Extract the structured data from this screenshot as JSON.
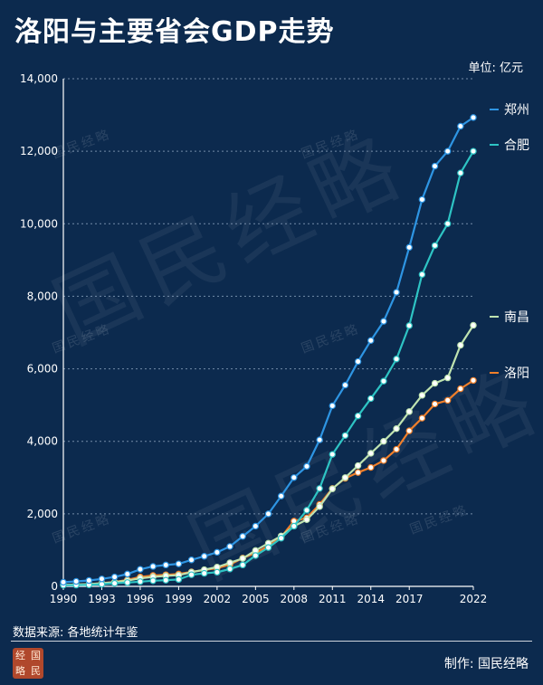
{
  "header": {
    "title": "洛阳与主要省会GDP走势",
    "unit": "单位: 亿元"
  },
  "footer": {
    "source": "数据来源: 各地统计年鉴",
    "credit": "制作: 国民经略",
    "logo_chars": [
      "经",
      "国",
      "略",
      "民"
    ]
  },
  "watermark": {
    "small_text": "国民经略",
    "large_text": "国民经略"
  },
  "colors": {
    "background": "#0c2a4e",
    "zhengzhou": "#2e95e3",
    "hefei": "#2ec4c4",
    "nanchang": "#bfe3b0",
    "luoyang": "#f07f2a",
    "marker_fill": "#ffffff",
    "grid": "#8ea5bf"
  },
  "chart_data": {
    "type": "line",
    "title": "洛阳与主要省会GDP走势",
    "xlabel": "",
    "ylabel": "",
    "ylim": [
      0,
      14000
    ],
    "yticks": [
      0,
      2000,
      4000,
      6000,
      8000,
      10000,
      12000,
      14000
    ],
    "ytick_labels": [
      "0",
      "2,000",
      "4,000",
      "6,000",
      "8,000",
      "10,000",
      "12,000",
      "14,000"
    ],
    "xlim": [
      1990,
      2022
    ],
    "xticks": [
      1990,
      1993,
      1996,
      1999,
      2002,
      2005,
      2008,
      2011,
      2014,
      2017,
      2022
    ],
    "grid": "horizontal-dotted",
    "legend": "right, at line ends",
    "x": [
      1990,
      1991,
      1992,
      1993,
      1994,
      1995,
      1996,
      1997,
      1998,
      1999,
      2000,
      2001,
      2002,
      2003,
      2004,
      2005,
      2006,
      2007,
      2008,
      2009,
      2010,
      2011,
      2012,
      2013,
      2014,
      2015,
      2016,
      2017,
      2018,
      2019,
      2020,
      2021,
      2022
    ],
    "series": [
      {
        "name": "郑州",
        "color_key": "zhengzhou",
        "values": [
          115,
          137,
          162,
          205,
          260,
          340,
          470,
          550,
          590,
          620,
          730,
          830,
          940,
          1100,
          1380,
          1660,
          2000,
          2490,
          3000,
          3310,
          4040,
          4980,
          5550,
          6200,
          6780,
          7310,
          8110,
          9350,
          10670,
          11590,
          12000,
          12690,
          12930
        ]
      },
      {
        "name": "合肥",
        "color_key": "hefei",
        "values": [
          30,
          35,
          42,
          60,
          85,
          105,
          130,
          155,
          170,
          190,
          320,
          360,
          390,
          480,
          590,
          850,
          1070,
          1330,
          1660,
          2100,
          2700,
          3640,
          4160,
          4700,
          5180,
          5660,
          6270,
          7190,
          8600,
          9400,
          10000,
          11400,
          12000
        ]
      },
      {
        "name": "南昌",
        "color_key": "nanchang",
        "values": [
          40,
          50,
          60,
          85,
          115,
          160,
          220,
          260,
          290,
          310,
          390,
          460,
          530,
          650,
          770,
          990,
          1190,
          1390,
          1660,
          1840,
          2200,
          2690,
          3000,
          3330,
          3670,
          4000,
          4350,
          4820,
          5270,
          5600,
          5750,
          6650,
          7200
        ]
      },
      {
        "name": "洛阳",
        "color_key": "luoyang",
        "values": [
          40,
          50,
          60,
          90,
          120,
          180,
          260,
          300,
          320,
          340,
          400,
          450,
          500,
          600,
          780,
          920,
          1110,
          1360,
          1800,
          1890,
          2260,
          2700,
          2980,
          3140,
          3280,
          3470,
          3780,
          4290,
          4640,
          5030,
          5130,
          5450,
          5680
        ]
      }
    ]
  }
}
